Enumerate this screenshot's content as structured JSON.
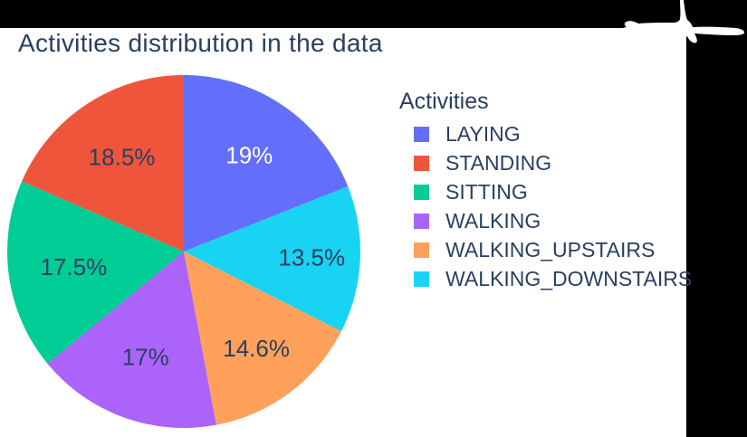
{
  "chart_data": {
    "type": "pie",
    "title": "Activities distribution in the data",
    "legend_title": "Activities",
    "labels": [
      "LAYING",
      "STANDING",
      "SITTING",
      "WALKING",
      "WALKING_UPSTAIRS",
      "WALKING_DOWNSTAIRS"
    ],
    "values_pct": [
      19,
      18.5,
      17.5,
      17,
      14.6,
      13.5
    ],
    "colors": [
      "#636EFA",
      "#EF553B",
      "#00CC96",
      "#AB63FA",
      "#FFA15A",
      "#19D3F3"
    ],
    "slice_label_text": [
      "19%",
      "18.5%",
      "17.5%",
      "17%",
      "14.6%",
      "13.5%"
    ],
    "slice_label_colors": [
      "#ffffff",
      "#2a3f5f",
      "#2a3f5f",
      "#2a3f5f",
      "#2a3f5f",
      "#2a3f5f"
    ],
    "start_angle": "12-oclock",
    "clockwise_order": [
      "LAYING",
      "WALKING_DOWNSTAIRS",
      "WALKING_UPSTAIRS",
      "WALKING",
      "SITTING",
      "STANDING"
    ],
    "legend_position": "right",
    "text_color": "#2a3f5f",
    "paper_color": "#ffffff",
    "frame_color": "#000000"
  },
  "decorations": {
    "top_right_artifact": "white-paint-scribble"
  }
}
